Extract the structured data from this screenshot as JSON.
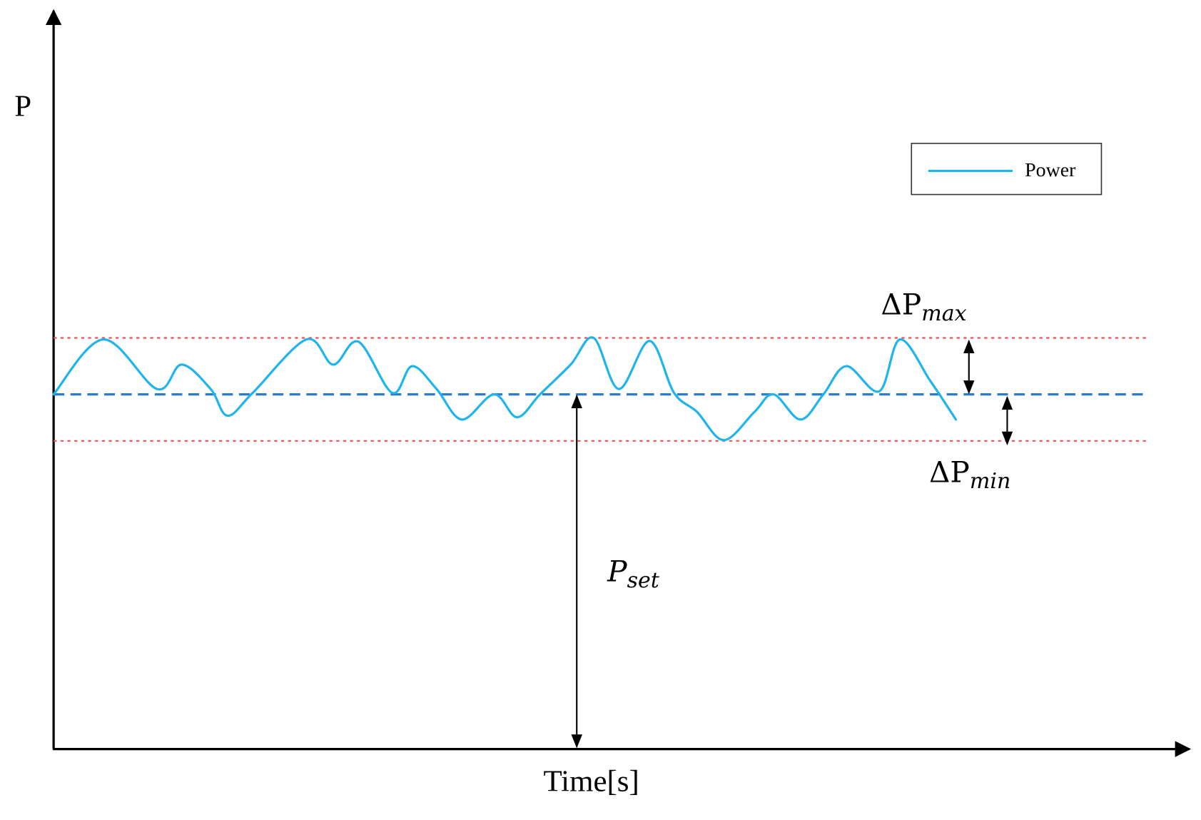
{
  "y_axis": {
    "label": "P"
  },
  "x_axis": {
    "label": "Time[s]"
  },
  "legend": {
    "label": "Power"
  },
  "annotations": {
    "delta_max": {
      "symbol": "ΔP",
      "subscript": "max"
    },
    "delta_min": {
      "symbol": "ΔP",
      "subscript": "min"
    },
    "setpoint": {
      "symbol": "P",
      "subscript": "set"
    }
  }
}
